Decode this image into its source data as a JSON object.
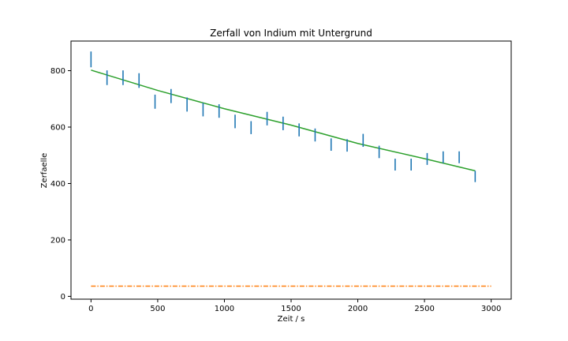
{
  "chart_data": {
    "type": "scatter",
    "title": "Zerfall von Indium mit Untergrund",
    "xlabel": "Zeit / s",
    "ylabel": "Zerfaelle",
    "xlim": [
      -150,
      3150
    ],
    "ylim": [
      -10,
      905
    ],
    "xticks": [
      0,
      500,
      1000,
      1500,
      2000,
      2500,
      3000
    ],
    "yticks": [
      0,
      200,
      400,
      600,
      800
    ],
    "grid": false,
    "colors": {
      "data": "#1f77b4",
      "background": "#ff7f0e",
      "fit": "#2ca02c"
    },
    "series": [
      {
        "kind": "errorbar",
        "x": [
          0,
          120,
          240,
          360,
          480,
          600,
          720,
          840,
          960,
          1080,
          1200,
          1320,
          1440,
          1560,
          1680,
          1800,
          1920,
          2040,
          2160,
          2280,
          2400,
          2520,
          2640,
          2760,
          2880
        ],
        "y": [
          840,
          775,
          775,
          765,
          690,
          710,
          680,
          662,
          657,
          620,
          598,
          630,
          613,
          590,
          572,
          538,
          535,
          553,
          512,
          467,
          467,
          487,
          493,
          493,
          425
        ],
        "yerr": [
          28,
          26,
          26,
          26,
          25,
          25,
          25,
          24,
          24,
          24,
          23,
          24,
          24,
          23,
          23,
          22,
          22,
          23,
          22,
          21,
          21,
          21,
          21,
          21,
          20
        ]
      },
      {
        "kind": "background-line",
        "x": [
          0,
          3000
        ],
        "y": [
          36,
          36
        ]
      },
      {
        "kind": "fit-line",
        "x": [
          0,
          500,
          1000,
          1500,
          2000,
          2500,
          2880
        ],
        "y": [
          802,
          730,
          665,
          607,
          542,
          488,
          445
        ]
      }
    ]
  }
}
